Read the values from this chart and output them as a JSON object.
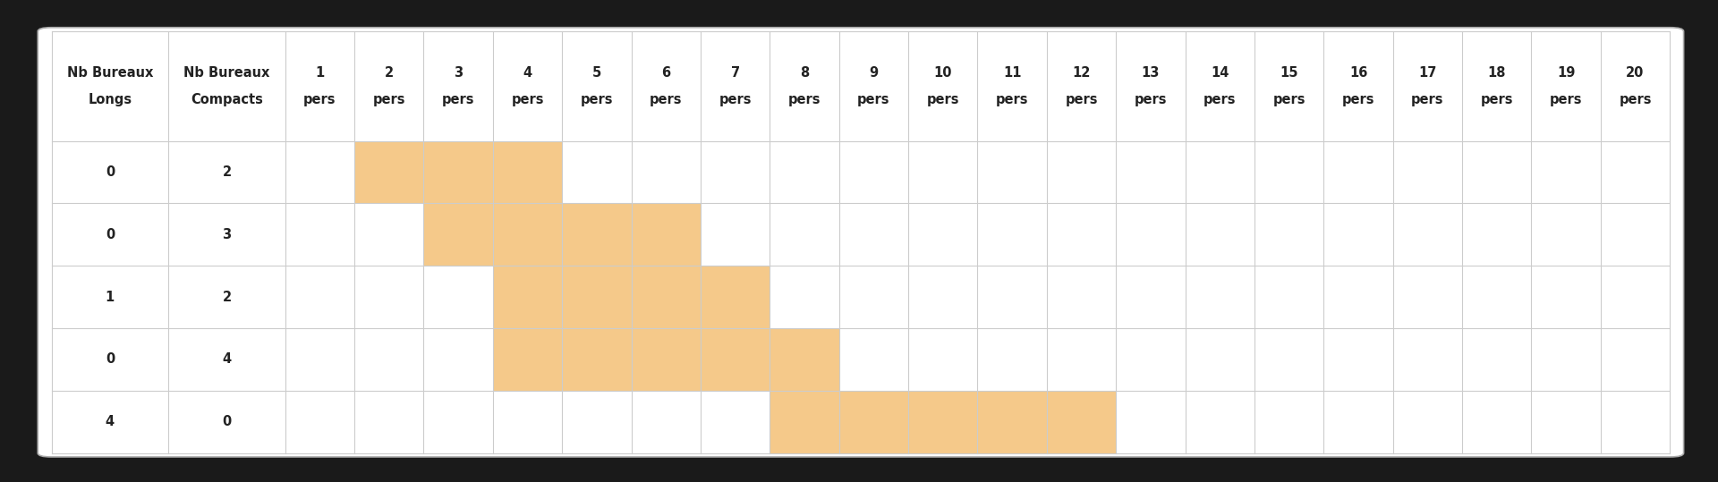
{
  "col_headers_line1": [
    "Nb Bureaux",
    "Nb Bureaux",
    "1",
    "2",
    "3",
    "4",
    "5",
    "6",
    "7",
    "8",
    "9",
    "10",
    "11",
    "12",
    "13",
    "14",
    "15",
    "16",
    "17",
    "18",
    "19",
    "20"
  ],
  "col_headers_line2": [
    "Longs",
    "Compacts",
    "pers",
    "pers",
    "pers",
    "pers",
    "pers",
    "pers",
    "pers",
    "pers",
    "pers",
    "pers",
    "pers",
    "pers",
    "pers",
    "pers",
    "pers",
    "pers",
    "pers",
    "pers",
    "pers",
    "pers"
  ],
  "rows": [
    {
      "longs": 0,
      "compacts": 2
    },
    {
      "longs": 0,
      "compacts": 3
    },
    {
      "longs": 1,
      "compacts": 2
    },
    {
      "longs": 0,
      "compacts": 4
    },
    {
      "longs": 4,
      "compacts": 0
    }
  ],
  "highlighted": [
    [
      2,
      3,
      4
    ],
    [
      3,
      4,
      5,
      6
    ],
    [
      4,
      5,
      6,
      7
    ],
    [
      4,
      5,
      6,
      7,
      8
    ],
    [
      8,
      9,
      10,
      11,
      12
    ]
  ],
  "highlight_color": "#f5c98a",
  "grid_color": "#cccccc",
  "background_color": "#ffffff",
  "border_color": "#aaaaaa",
  "text_color": "#222222",
  "font_size": 10.5,
  "outer_bg": "#1a1a1a"
}
